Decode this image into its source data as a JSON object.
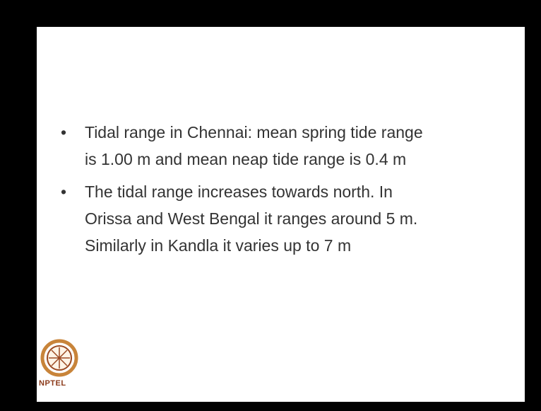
{
  "slide": {
    "bullets": [
      {
        "lines": [
          "Tidal range in Chennai: mean spring tide range",
          "is 1.00 m and mean neap tide range is  0.4 m"
        ]
      },
      {
        "lines": [
          "The tidal range increases towards north. In",
          "Orissa and West Bengal  it ranges around 5 m.",
          "Similarly in Kandla it varies up to 7 m"
        ]
      }
    ],
    "logo_text": "NPTEL"
  }
}
